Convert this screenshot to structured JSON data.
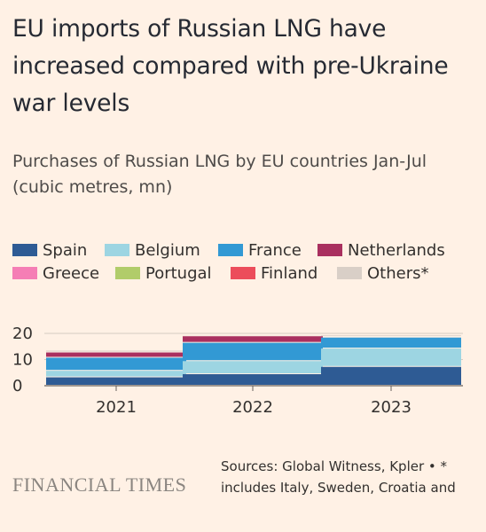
{
  "title": "EU imports of Russian LNG have increased compared with pre-Ukraine war levels",
  "subtitle": "Purchases of Russian LNG by EU countries Jan-Jul (cubic metres, mn)",
  "logo": "FINANCIAL TIMES",
  "source": "Sources: Global Witness, Kpler • * includes Italy, Sweden, Croatia and",
  "chart_data": {
    "type": "bar",
    "stacked": true,
    "categories": [
      "2021",
      "2022",
      "2023"
    ],
    "ylim": [
      0,
      20
    ],
    "yticks": [
      "0",
      "10",
      "20"
    ],
    "legend_placement": "top",
    "series": [
      {
        "name": "Spain",
        "color": "#2e5b94",
        "values": [
          3.2,
          4.4,
          7.2
        ]
      },
      {
        "name": "Belgium",
        "color": "#9dd5e2",
        "values": [
          2.5,
          5.0,
          7.0
        ]
      },
      {
        "name": "France",
        "color": "#3299d4",
        "values": [
          5.0,
          7.0,
          4.2
        ]
      },
      {
        "name": "Netherlands",
        "color": "#a9305f",
        "values": [
          2.0,
          2.5,
          0.3
        ]
      },
      {
        "name": "Greece",
        "color": "#f57eb5",
        "values": [
          0.0,
          0.0,
          0.0
        ]
      },
      {
        "name": "Portugal",
        "color": "#b1cc6a",
        "values": [
          0.0,
          0.0,
          0.0
        ]
      },
      {
        "name": "Finland",
        "color": "#ec4d5b",
        "values": [
          0.0,
          0.0,
          0.0
        ]
      },
      {
        "name": "Others*",
        "color": "#d9cfc7",
        "values": [
          0.7,
          0.4,
          0.6
        ]
      }
    ]
  }
}
